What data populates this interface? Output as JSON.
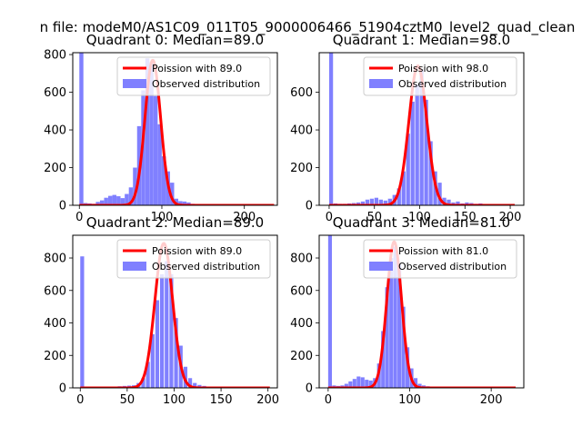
{
  "suptitle": "n file: modeM0/AS1C09_011T05_9000006466_51904cztM0_level2_quad_clean",
  "colors": {
    "fit": "#ff0000",
    "observed": "#8080ff"
  },
  "chart_data": [
    {
      "type": "bar",
      "title": "Quadrant 0: Median=89.0",
      "xlim": [
        -8,
        240
      ],
      "ylim": [
        0,
        810
      ],
      "xticks": [
        0,
        100,
        200
      ],
      "yticks": [
        0,
        200,
        400,
        600,
        800
      ],
      "legend": {
        "placement": "top-right",
        "fit_label": "Poission with 89.0",
        "observed_label": "Observed distribution"
      },
      "observed": {
        "bin_width": 4.9,
        "bins": [
          [
            0,
            810
          ],
          [
            5,
            12
          ],
          [
            10,
            10
          ],
          [
            15,
            8
          ],
          [
            20,
            18
          ],
          [
            25,
            26
          ],
          [
            30,
            40
          ],
          [
            35,
            50
          ],
          [
            40,
            55
          ],
          [
            45,
            48
          ],
          [
            50,
            38
          ],
          [
            55,
            60
          ],
          [
            60,
            95
          ],
          [
            65,
            200
          ],
          [
            70,
            420
          ],
          [
            75,
            610
          ],
          [
            80,
            780
          ],
          [
            85,
            760
          ],
          [
            90,
            580
          ],
          [
            95,
            430
          ],
          [
            100,
            260
          ],
          [
            105,
            180
          ],
          [
            110,
            120
          ],
          [
            115,
            35
          ],
          [
            120,
            22
          ],
          [
            125,
            20
          ],
          [
            130,
            15
          ],
          [
            135,
            8
          ],
          [
            140,
            5
          ],
          [
            145,
            5
          ],
          [
            150,
            4
          ],
          [
            155,
            3
          ],
          [
            160,
            3
          ],
          [
            165,
            3
          ],
          [
            170,
            2
          ],
          [
            175,
            2
          ],
          [
            180,
            2
          ],
          [
            185,
            2
          ],
          [
            190,
            1
          ],
          [
            195,
            1
          ],
          [
            200,
            1
          ],
          [
            205,
            1
          ],
          [
            210,
            1
          ],
          [
            215,
            1
          ],
          [
            220,
            1
          ],
          [
            225,
            1
          ],
          [
            230,
            1
          ]
        ]
      },
      "fit": {
        "mean": 89.0,
        "peak": 770,
        "x_range": [
          0,
          236
        ]
      }
    },
    {
      "type": "bar",
      "title": "Quadrant 1: Median=98.0",
      "xlim": [
        -11,
        215
      ],
      "ylim": [
        0,
        810
      ],
      "xticks": [
        0,
        50,
        100,
        150,
        200
      ],
      "yticks": [
        0,
        200,
        400,
        600
      ],
      "legend": {
        "placement": "top-right",
        "fit_label": "Poission with 98.0",
        "observed_label": "Observed distribution"
      },
      "observed": {
        "bin_width": 4.3,
        "bins": [
          [
            0,
            810
          ],
          [
            5,
            10
          ],
          [
            10,
            8
          ],
          [
            15,
            8
          ],
          [
            20,
            10
          ],
          [
            25,
            12
          ],
          [
            30,
            15
          ],
          [
            35,
            20
          ],
          [
            40,
            30
          ],
          [
            45,
            35
          ],
          [
            50,
            40
          ],
          [
            55,
            30
          ],
          [
            60,
            25
          ],
          [
            65,
            35
          ],
          [
            70,
            55
          ],
          [
            75,
            90
          ],
          [
            80,
            180
          ],
          [
            85,
            380
          ],
          [
            90,
            550
          ],
          [
            95,
            640
          ],
          [
            100,
            720
          ],
          [
            105,
            560
          ],
          [
            110,
            340
          ],
          [
            115,
            180
          ],
          [
            120,
            120
          ],
          [
            125,
            40
          ],
          [
            130,
            30
          ],
          [
            135,
            15
          ],
          [
            140,
            20
          ],
          [
            145,
            10
          ],
          [
            150,
            15
          ],
          [
            155,
            12
          ],
          [
            160,
            8
          ],
          [
            165,
            10
          ],
          [
            170,
            5
          ],
          [
            175,
            5
          ],
          [
            180,
            4
          ],
          [
            185,
            3
          ],
          [
            190,
            3
          ],
          [
            195,
            2
          ],
          [
            200,
            2
          ],
          [
            205,
            1
          ]
        ]
      },
      "fit": {
        "mean": 98.0,
        "peak": 740,
        "x_range": [
          0,
          205
        ]
      }
    },
    {
      "type": "bar",
      "title": "Quadrant 2: Median=89.0",
      "xlim": [
        -8,
        210
      ],
      "ylim": [
        0,
        940
      ],
      "xticks": [
        0,
        50,
        100,
        150,
        200
      ],
      "yticks": [
        0,
        200,
        400,
        600,
        800
      ],
      "legend": {
        "placement": "top-right",
        "fit_label": "Poission with 89.0",
        "observed_label": "Observed distribution"
      },
      "observed": {
        "bin_width": 4.1,
        "bins": [
          [
            0,
            810
          ],
          [
            5,
            8
          ],
          [
            10,
            5
          ],
          [
            15,
            5
          ],
          [
            20,
            5
          ],
          [
            25,
            5
          ],
          [
            30,
            6
          ],
          [
            35,
            8
          ],
          [
            40,
            10
          ],
          [
            45,
            12
          ],
          [
            50,
            14
          ],
          [
            55,
            16
          ],
          [
            60,
            30
          ],
          [
            65,
            60
          ],
          [
            70,
            160
          ],
          [
            75,
            330
          ],
          [
            80,
            540
          ],
          [
            85,
            700
          ],
          [
            90,
            780
          ],
          [
            95,
            700
          ],
          [
            100,
            430
          ],
          [
            105,
            260
          ],
          [
            110,
            130
          ],
          [
            115,
            60
          ],
          [
            120,
            30
          ],
          [
            125,
            18
          ],
          [
            130,
            12
          ],
          [
            135,
            8
          ],
          [
            140,
            6
          ],
          [
            145,
            5
          ],
          [
            150,
            5
          ],
          [
            155,
            4
          ],
          [
            160,
            3
          ],
          [
            165,
            3
          ],
          [
            170,
            2
          ],
          [
            175,
            2
          ],
          [
            180,
            1
          ],
          [
            185,
            1
          ],
          [
            190,
            1
          ],
          [
            195,
            1
          ],
          [
            200,
            1
          ]
        ]
      },
      "fit": {
        "mean": 89.0,
        "peak": 890,
        "x_range": [
          0,
          202
        ]
      }
    },
    {
      "type": "bar",
      "title": "Quadrant 3: Median=81.0",
      "xlim": [
        -11,
        240
      ],
      "ylim": [
        0,
        940
      ],
      "xticks": [
        0,
        100,
        200
      ],
      "yticks": [
        0,
        200,
        400,
        600,
        800
      ],
      "legend": {
        "placement": "top-right",
        "fit_label": "Poission with 81.0",
        "observed_label": "Observed distribution"
      },
      "observed": {
        "bin_width": 4.6,
        "bins": [
          [
            0,
            940
          ],
          [
            5,
            15
          ],
          [
            10,
            12
          ],
          [
            15,
            15
          ],
          [
            20,
            25
          ],
          [
            25,
            40
          ],
          [
            30,
            55
          ],
          [
            35,
            70
          ],
          [
            40,
            65
          ],
          [
            45,
            50
          ],
          [
            50,
            45
          ],
          [
            55,
            60
          ],
          [
            60,
            150
          ],
          [
            65,
            350
          ],
          [
            70,
            620
          ],
          [
            75,
            800
          ],
          [
            80,
            870
          ],
          [
            85,
            760
          ],
          [
            90,
            500
          ],
          [
            95,
            250
          ],
          [
            100,
            120
          ],
          [
            105,
            60
          ],
          [
            110,
            25
          ],
          [
            115,
            15
          ],
          [
            120,
            10
          ],
          [
            125,
            8
          ],
          [
            130,
            5
          ],
          [
            135,
            4
          ],
          [
            140,
            3
          ],
          [
            145,
            3
          ],
          [
            150,
            2
          ],
          [
            155,
            2
          ],
          [
            160,
            2
          ],
          [
            165,
            1
          ],
          [
            170,
            1
          ],
          [
            175,
            1
          ],
          [
            180,
            1
          ],
          [
            185,
            1
          ],
          [
            190,
            1
          ],
          [
            195,
            1
          ],
          [
            200,
            1
          ],
          [
            210,
            1
          ],
          [
            220,
            1
          ],
          [
            230,
            1
          ]
        ]
      },
      "fit": {
        "mean": 81.0,
        "peak": 900,
        "x_range": [
          0,
          230
        ]
      }
    }
  ]
}
